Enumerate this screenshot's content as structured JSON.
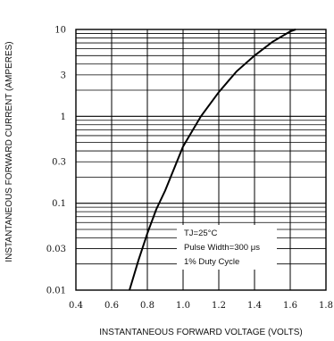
{
  "chart_data": {
    "type": "line",
    "title": "",
    "xlabel": "INSTANTANEOUS FORWARD VOLTAGE (VOLTS)",
    "ylabel": "INSTANTANEOUS FORWARD CURRENT (AMPERES)",
    "xlim": [
      0.4,
      1.8
    ],
    "ylim": [
      0.01,
      10
    ],
    "y_scale": "log",
    "grid": true,
    "x_ticks": [
      "0.4",
      "0.6",
      "0.8",
      "1.0",
      "1.2",
      "1.4",
      "1.6",
      "1.8"
    ],
    "x_tick_values": [
      0.4,
      0.6,
      0.8,
      1.0,
      1.2,
      1.4,
      1.6,
      1.8
    ],
    "y_ticks": [
      "0.01",
      "0.03",
      "0.1",
      "0.3",
      "1",
      "3",
      "10"
    ],
    "y_tick_values": [
      0.01,
      0.03,
      0.1,
      0.3,
      1,
      3,
      10
    ],
    "series": [
      {
        "x": [
          0.7,
          0.75,
          0.8,
          0.85,
          0.9,
          1.0,
          1.1,
          1.2,
          1.3,
          1.4,
          1.5,
          1.6,
          1.63
        ],
        "y": [
          0.01,
          0.022,
          0.045,
          0.085,
          0.14,
          0.45,
          1.0,
          1.9,
          3.3,
          5.0,
          7.2,
          9.5,
          10
        ]
      }
    ],
    "annotations": [
      "TJ=25°C",
      "Pulse Width=300 μs",
      "1% Duty Cycle"
    ]
  }
}
